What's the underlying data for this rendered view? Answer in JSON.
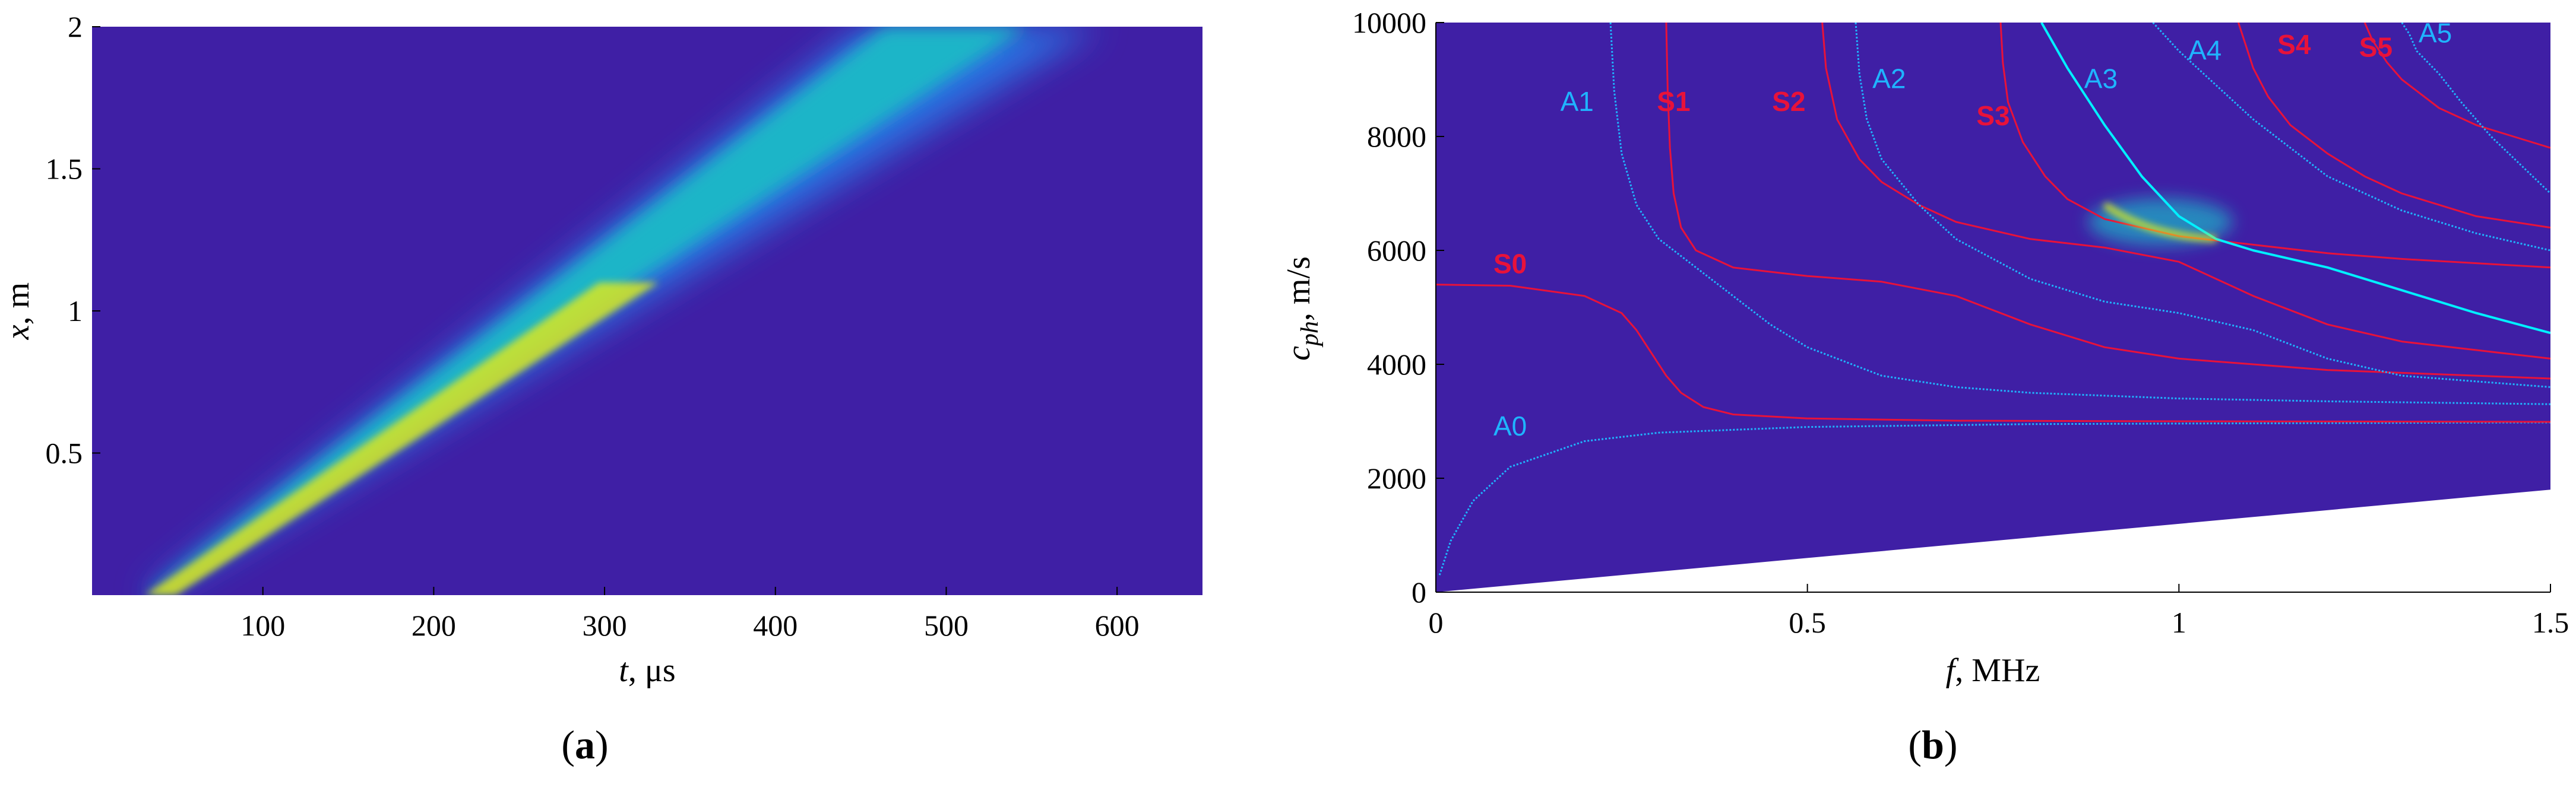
{
  "colors": {
    "background": "#3f1fa5",
    "band_low": "#2b6fe0",
    "band_mid": "#1ab5c8",
    "band_high": "#d8e820",
    "antisymmetric": "#1fb4ff",
    "symmetric": "#e8123a",
    "highlight": "#00f0ff",
    "axis": "#000000"
  },
  "panels": {
    "a": {
      "label_open": "(",
      "label_letter": "a",
      "label_close": ")"
    },
    "b": {
      "label_open": "(",
      "label_letter": "b",
      "label_close": ")"
    }
  },
  "chart_data": [
    {
      "type": "heatmap",
      "panel": "a",
      "xlabel_symbol": "t",
      "xlabel_unit": ", μs",
      "ylabel_symbol": "x",
      "ylabel_unit": ", m",
      "xlim": [
        0,
        650
      ],
      "ylim": [
        0,
        2
      ],
      "xticks": [
        "100",
        "200",
        "300",
        "400",
        "500",
        "600"
      ],
      "xtick_values": [
        100,
        200,
        300,
        400,
        500,
        600
      ],
      "yticks": [
        "0.5",
        "1",
        "1.5",
        "2"
      ],
      "ytick_values": [
        0.5,
        1,
        1.5,
        2
      ],
      "band": {
        "leading_edge": [
          [
            30,
            0
          ],
          [
            450,
            2
          ]
        ],
        "trailing_edge": [
          [
            40,
            0
          ],
          [
            590,
            2
          ]
        ],
        "peak_front": [
          [
            35,
            0
          ],
          [
            520,
            2
          ]
        ]
      }
    },
    {
      "type": "line",
      "panel": "b",
      "xlabel_symbol": "f",
      "xlabel_unit": ", MHz",
      "ylabel_symbol": "c",
      "ylabel_subscript": "ph",
      "ylabel_unit": ", m/s",
      "xlim": [
        0,
        1.5
      ],
      "ylim": [
        0,
        10000
      ],
      "xticks": [
        "0",
        "0.5",
        "1",
        "1.5"
      ],
      "xtick_values": [
        0,
        0.5,
        1,
        1.5
      ],
      "yticks": [
        "0",
        "2000",
        "4000",
        "6000",
        "8000",
        "10000"
      ],
      "ytick_values": [
        0,
        2000,
        4000,
        6000,
        8000,
        10000
      ],
      "lower_cutoff": [
        [
          0,
          0
        ],
        [
          1.5,
          1800
        ]
      ],
      "hotspot": {
        "x": [
          0.9,
          1.05
        ],
        "y": [
          6800,
          6200
        ]
      },
      "series": [
        {
          "name": "A0",
          "kind": "antisymmetric",
          "label_at": [
            0.1,
            2750
          ],
          "x": [
            0.005,
            0.02,
            0.05,
            0.1,
            0.2,
            0.3,
            0.5,
            0.8,
            1.0,
            1.5
          ],
          "y": [
            300,
            900,
            1600,
            2200,
            2650,
            2800,
            2900,
            2950,
            2960,
            2980
          ]
        },
        {
          "name": "A1",
          "kind": "antisymmetric",
          "label_at": [
            0.19,
            8450
          ],
          "x": [
            0.235,
            0.24,
            0.25,
            0.27,
            0.3,
            0.35,
            0.4,
            0.45,
            0.5,
            0.6,
            0.7,
            0.8,
            1.0,
            1.2,
            1.5
          ],
          "y": [
            10000,
            8800,
            7700,
            6800,
            6200,
            5700,
            5200,
            4700,
            4300,
            3800,
            3600,
            3500,
            3400,
            3350,
            3300
          ]
        },
        {
          "name": "S1",
          "kind": "symmetric",
          "label_at": [
            0.32,
            8450
          ],
          "x": [
            0.31,
            0.312,
            0.315,
            0.32,
            0.33,
            0.35,
            0.4,
            0.5,
            0.6,
            0.7,
            0.8,
            0.9,
            1.0,
            1.2,
            1.5
          ],
          "y": [
            10000,
            8800,
            7800,
            7000,
            6400,
            6000,
            5700,
            5550,
            5450,
            5200,
            4700,
            4300,
            4100,
            3900,
            3750
          ]
        },
        {
          "name": "S2",
          "kind": "symmetric",
          "label_at": [
            0.475,
            8450
          ],
          "x": [
            0.52,
            0.525,
            0.54,
            0.57,
            0.6,
            0.65,
            0.7,
            0.8,
            0.9,
            1.0,
            1.1,
            1.2,
            1.3,
            1.5
          ],
          "y": [
            10000,
            9200,
            8300,
            7600,
            7200,
            6800,
            6500,
            6200,
            6050,
            5800,
            5200,
            4700,
            4400,
            4100
          ]
        },
        {
          "name": "A2",
          "kind": "antisymmetric",
          "label_at": [
            0.61,
            8850
          ],
          "x": [
            0.565,
            0.57,
            0.58,
            0.6,
            0.65,
            0.7,
            0.8,
            0.9,
            1.0,
            1.1,
            1.2,
            1.3,
            1.5
          ],
          "y": [
            10000,
            9100,
            8300,
            7600,
            6800,
            6200,
            5500,
            5100,
            4900,
            4600,
            4100,
            3800,
            3600
          ]
        },
        {
          "name": "S3",
          "kind": "symmetric",
          "label_at": [
            0.75,
            8200
          ],
          "x": [
            0.76,
            0.763,
            0.77,
            0.79,
            0.82,
            0.85,
            0.9,
            1.0,
            1.1,
            1.2,
            1.3,
            1.5
          ],
          "y": [
            10000,
            9300,
            8600,
            7900,
            7300,
            6900,
            6550,
            6250,
            6100,
            5950,
            5850,
            5700
          ]
        },
        {
          "name": "A3",
          "kind": "highlight",
          "label_at": [
            0.895,
            8850
          ],
          "x": [
            0.815,
            0.85,
            0.9,
            0.95,
            1.0,
            1.05,
            1.1,
            1.2,
            1.3,
            1.4,
            1.5
          ],
          "y": [
            10000,
            9200,
            8200,
            7300,
            6600,
            6200,
            6000,
            5700,
            5300,
            4900,
            4550
          ]
        },
        {
          "name": "A4",
          "kind": "antisymmetric",
          "label_at": [
            1.035,
            9350
          ],
          "x": [
            0.965,
            1.0,
            1.05,
            1.1,
            1.2,
            1.3,
            1.4,
            1.5
          ],
          "y": [
            10000,
            9500,
            8900,
            8300,
            7300,
            6700,
            6300,
            6000
          ]
        },
        {
          "name": "S4",
          "kind": "symmetric",
          "label_at": [
            1.155,
            9450
          ],
          "x": [
            1.08,
            1.09,
            1.1,
            1.12,
            1.15,
            1.2,
            1.25,
            1.3,
            1.35,
            1.4,
            1.5
          ],
          "y": [
            10000,
            9600,
            9200,
            8700,
            8200,
            7700,
            7300,
            7000,
            6800,
            6600,
            6400
          ]
        },
        {
          "name": "S5",
          "kind": "symmetric",
          "label_at": [
            1.265,
            9400
          ],
          "x": [
            1.25,
            1.26,
            1.28,
            1.3,
            1.35,
            1.4,
            1.45,
            1.5
          ],
          "y": [
            10000,
            9700,
            9300,
            9000,
            8500,
            8200,
            8000,
            7800
          ]
        },
        {
          "name": "A5",
          "kind": "antisymmetric",
          "label_at": [
            1.345,
            9650
          ],
          "x": [
            1.3,
            1.31,
            1.32,
            1.35,
            1.38,
            1.42,
            1.46,
            1.5
          ],
          "y": [
            10000,
            9800,
            9500,
            9100,
            8600,
            8000,
            7500,
            7000
          ]
        },
        {
          "name": "S0",
          "kind": "symmetric",
          "label_at": [
            0.1,
            5600
          ],
          "x": [
            0,
            0.1,
            0.2,
            0.25,
            0.27,
            0.29,
            0.31,
            0.33,
            0.36,
            0.4,
            0.5,
            0.7,
            1.0,
            1.5
          ],
          "y": [
            5400,
            5380,
            5200,
            4900,
            4600,
            4200,
            3800,
            3500,
            3250,
            3120,
            3050,
            3010,
            3000,
            2990
          ]
        }
      ]
    }
  ]
}
